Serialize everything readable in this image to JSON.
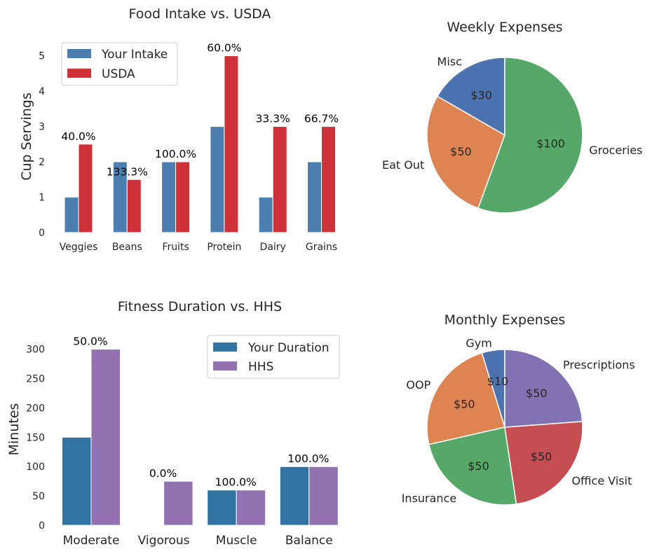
{
  "chart_data": [
    {
      "type": "bar",
      "title": "Food Intake vs. USDA",
      "xlabel": "",
      "ylabel": "Cup Servings",
      "categories": [
        "Veggies",
        "Beans",
        "Fruits",
        "Protein",
        "Dairy",
        "Grains"
      ],
      "series": [
        {
          "name": "Your Intake",
          "values": [
            1,
            2,
            2,
            3,
            1,
            2
          ],
          "color": "#4C7FAF"
        },
        {
          "name": "USDA",
          "values": [
            2.5,
            1.5,
            2,
            5,
            3,
            3
          ],
          "color": "#CC3238"
        }
      ],
      "bar_labels": [
        "40.0%",
        "133.3%",
        "100.0%",
        "60.0%",
        "33.3%",
        "66.7%"
      ],
      "yticks": [
        0,
        1,
        2,
        3,
        4,
        5
      ],
      "ylim": [
        0,
        5.25
      ],
      "grid": false,
      "legend_position": "top-left"
    },
    {
      "type": "pie",
      "title": "Weekly Expenses",
      "labels": [
        "Misc",
        "Eat Out",
        "Groceries"
      ],
      "values": [
        30,
        50,
        100
      ],
      "value_labels": [
        "$30",
        "$50",
        "$100"
      ],
      "colors": [
        "#4C72B0",
        "#DD8452",
        "#55A868"
      ],
      "start_angle": 90,
      "direction": "counterclockwise"
    },
    {
      "type": "bar",
      "title": "Fitness Duration vs. HHS",
      "xlabel": "",
      "ylabel": "Minutes",
      "categories": [
        "Moderate",
        "Vigorous",
        "Muscle",
        "Balance"
      ],
      "series": [
        {
          "name": "Your Duration",
          "values": [
            150,
            0,
            60,
            100
          ],
          "color": "#3274A1"
        },
        {
          "name": "HHS",
          "values": [
            300,
            75,
            60,
            100
          ],
          "color": "#9372B2"
        }
      ],
      "bar_labels": [
        "50.0%",
        "0.0%",
        "100.0%",
        "100.0%"
      ],
      "yticks": [
        0,
        50,
        100,
        150,
        200,
        250,
        300
      ],
      "ylim": [
        0,
        315
      ],
      "grid": false,
      "legend_position": "top-right"
    },
    {
      "type": "pie",
      "title": "Monthly Expenses",
      "labels": [
        "Gym",
        "OOP",
        "Insurance",
        "Office Visit",
        "Prescriptions"
      ],
      "values": [
        10,
        50,
        50,
        50,
        50
      ],
      "value_labels": [
        "$10",
        "$50",
        "$50",
        "$50",
        "$50"
      ],
      "colors": [
        "#4C72B0",
        "#DD8452",
        "#55A868",
        "#C44E52",
        "#8172B3"
      ],
      "start_angle": 90,
      "direction": "counterclockwise"
    }
  ]
}
